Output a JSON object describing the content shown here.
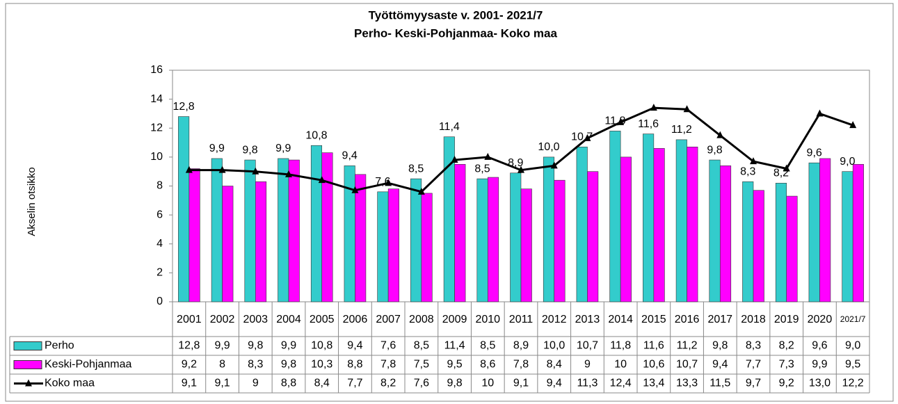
{
  "chart_data": {
    "type": "bar",
    "title": "Työttömyysaste  v. 2001- 2021/7",
    "subtitle": "Perho- Keski-Pohjanmaa- Koko maa",
    "ylabel": "Akselin otsikko",
    "categories": [
      "2001",
      "2002",
      "2003",
      "2004",
      "2005",
      "2006",
      "2007",
      "2008",
      "2009",
      "2010",
      "2011",
      "2012",
      "2013",
      "2014",
      "2015",
      "2016",
      "2017",
      "2018",
      "2019",
      "2020",
      "2021/7"
    ],
    "ylim": [
      0,
      16
    ],
    "yticks": [
      0,
      2,
      4,
      6,
      8,
      10,
      12,
      14,
      16
    ],
    "grid": false,
    "series": [
      {
        "name": "Perho",
        "color": "#33cccc",
        "kind": "bar",
        "data_labels": true,
        "values": [
          12.8,
          9.9,
          9.8,
          9.9,
          10.8,
          9.4,
          7.6,
          8.5,
          11.4,
          8.5,
          8.9,
          10.0,
          10.7,
          11.8,
          11.6,
          11.2,
          9.8,
          8.3,
          8.2,
          9.6,
          9.0
        ],
        "value_labels": [
          "12,8",
          "9,9",
          "9,8",
          "9,9",
          "10,8",
          "9,4",
          "7,6",
          "8,5",
          "11,4",
          "8,5",
          "8,9",
          "10,0",
          "10,7",
          "11,8",
          "11,6",
          "11,2",
          "9,8",
          "8,3",
          "8,2",
          "9,6",
          "9,0"
        ]
      },
      {
        "name": "Keski-Pohjanmaa",
        "color": "#ff00ff",
        "kind": "bar",
        "data_labels": false,
        "values": [
          9.2,
          8,
          8.3,
          9.8,
          10.3,
          8.8,
          7.8,
          7.5,
          9.5,
          8.6,
          7.8,
          8.4,
          9,
          10,
          10.6,
          10.7,
          9.4,
          7.7,
          7.3,
          9.9,
          9.5
        ],
        "value_labels": [
          "9,2",
          "8",
          "8,3",
          "9,8",
          "10,3",
          "8,8",
          "7,8",
          "7,5",
          "9,5",
          "8,6",
          "7,8",
          "8,4",
          "9",
          "10",
          "10,6",
          "10,7",
          "9,4",
          "7,7",
          "7,3",
          "9,9",
          "9,5"
        ]
      },
      {
        "name": "Koko maa",
        "color": "#000000",
        "kind": "line",
        "data_labels": false,
        "values": [
          9.1,
          9.1,
          9,
          8.8,
          8.4,
          7.7,
          8.2,
          7.6,
          9.8,
          10,
          9.1,
          9.4,
          11.3,
          12.4,
          13.4,
          13.3,
          11.5,
          9.7,
          9.2,
          13.0,
          12.2
        ],
        "value_labels": [
          "9,1",
          "9,1",
          "9",
          "8,8",
          "8,4",
          "7,7",
          "8,2",
          "7,6",
          "9,8",
          "10",
          "9,1",
          "9,4",
          "11,3",
          "12,4",
          "13,4",
          "13,3",
          "11,5",
          "9,7",
          "9,2",
          "13,0",
          "12,2"
        ]
      }
    ]
  }
}
